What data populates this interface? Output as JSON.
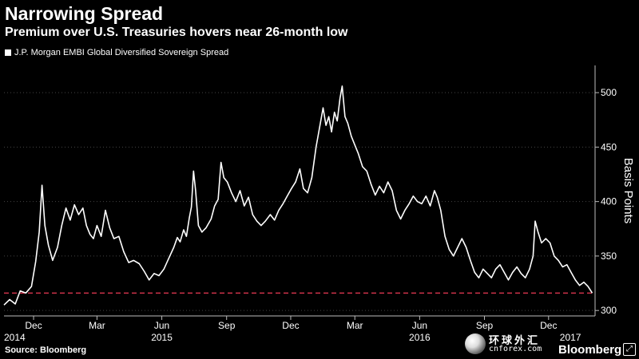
{
  "header": {
    "title": "Narrowing Spread",
    "subtitle": "Premium over U.S. Treasuries hovers near 26-month low"
  },
  "footer": {
    "source": "Source: Bloomberg",
    "watermark_cn": "环球外汇",
    "watermark_url": "cnforex.com",
    "brand": "Bloomberg"
  },
  "colors": {
    "line": "#ffffff",
    "reference": "#d0334a",
    "grid": "#444444",
    "background": "#000000"
  },
  "icons": {
    "corner": "expand-icon",
    "logo": "globe-logo-icon"
  },
  "chart_data": {
    "type": "line",
    "title": "Narrowing Spread",
    "subtitle": "Premium over U.S. Treasuries hovers near 26-month low",
    "ylabel": "Basis Points",
    "xlabel": "",
    "ylim": [
      295,
      525
    ],
    "yticks": [
      300,
      350,
      400,
      450,
      500
    ],
    "y_axis_position": "right",
    "grid": "horizontal dotted",
    "legend": "top-left",
    "x_month_ticks": [
      {
        "label": "Dec",
        "date": "2014-12-01"
      },
      {
        "label": "Mar",
        "date": "2015-03-01"
      },
      {
        "label": "Jun",
        "date": "2015-06-01"
      },
      {
        "label": "Sep",
        "date": "2015-09-01"
      },
      {
        "label": "Dec",
        "date": "2015-12-01"
      },
      {
        "label": "Mar",
        "date": "2016-03-01"
      },
      {
        "label": "Jun",
        "date": "2016-06-01"
      },
      {
        "label": "Sep",
        "date": "2016-09-01"
      },
      {
        "label": "Dec",
        "date": "2016-12-01"
      }
    ],
    "x_year_labels": [
      {
        "label": "2014",
        "date": "2014-11-01"
      },
      {
        "label": "2015",
        "date": "2015-06-01"
      },
      {
        "label": "2016",
        "date": "2016-06-01"
      },
      {
        "label": "2017",
        "date": "2017-01-01"
      }
    ],
    "xlim": [
      "2014-10-20",
      "2017-02-05"
    ],
    "reference_line": {
      "value": 316,
      "style": "dashed"
    },
    "series": [
      {
        "name": "J.P. Morgan EMBI Global Diversified Sovereign Spread",
        "points": [
          [
            "2014-10-20",
            305
          ],
          [
            "2014-10-28",
            310
          ],
          [
            "2014-11-05",
            306
          ],
          [
            "2014-11-12",
            318
          ],
          [
            "2014-11-20",
            316
          ],
          [
            "2014-11-28",
            322
          ],
          [
            "2014-12-04",
            345
          ],
          [
            "2014-12-09",
            372
          ],
          [
            "2014-12-13",
            415
          ],
          [
            "2014-12-17",
            378
          ],
          [
            "2014-12-22",
            360
          ],
          [
            "2014-12-28",
            346
          ],
          [
            "2015-01-04",
            358
          ],
          [
            "2015-01-10",
            378
          ],
          [
            "2015-01-16",
            394
          ],
          [
            "2015-01-22",
            383
          ],
          [
            "2015-01-28",
            397
          ],
          [
            "2015-02-03",
            388
          ],
          [
            "2015-02-09",
            394
          ],
          [
            "2015-02-14",
            378
          ],
          [
            "2015-02-19",
            370
          ],
          [
            "2015-02-24",
            366
          ],
          [
            "2015-03-01",
            378
          ],
          [
            "2015-03-07",
            368
          ],
          [
            "2015-03-13",
            392
          ],
          [
            "2015-03-19",
            376
          ],
          [
            "2015-03-25",
            366
          ],
          [
            "2015-04-01",
            368
          ],
          [
            "2015-04-08",
            354
          ],
          [
            "2015-04-15",
            344
          ],
          [
            "2015-04-22",
            346
          ],
          [
            "2015-04-30",
            343
          ],
          [
            "2015-05-07",
            336
          ],
          [
            "2015-05-14",
            328
          ],
          [
            "2015-05-21",
            334
          ],
          [
            "2015-05-28",
            332
          ],
          [
            "2015-06-04",
            338
          ],
          [
            "2015-06-11",
            348
          ],
          [
            "2015-06-18",
            358
          ],
          [
            "2015-06-23",
            367
          ],
          [
            "2015-06-27",
            363
          ],
          [
            "2015-07-02",
            374
          ],
          [
            "2015-07-06",
            368
          ],
          [
            "2015-07-10",
            385
          ],
          [
            "2015-07-13",
            395
          ],
          [
            "2015-07-16",
            428
          ],
          [
            "2015-07-19",
            410
          ],
          [
            "2015-07-23",
            378
          ],
          [
            "2015-07-28",
            372
          ],
          [
            "2015-08-03",
            376
          ],
          [
            "2015-08-10",
            384
          ],
          [
            "2015-08-15",
            396
          ],
          [
            "2015-08-20",
            402
          ],
          [
            "2015-08-24",
            436
          ],
          [
            "2015-08-28",
            422
          ],
          [
            "2015-09-02",
            418
          ],
          [
            "2015-09-08",
            408
          ],
          [
            "2015-09-14",
            400
          ],
          [
            "2015-09-20",
            410
          ],
          [
            "2015-09-26",
            396
          ],
          [
            "2015-10-02",
            404
          ],
          [
            "2015-10-08",
            388
          ],
          [
            "2015-10-14",
            382
          ],
          [
            "2015-10-20",
            378
          ],
          [
            "2015-10-26",
            382
          ],
          [
            "2015-11-02",
            388
          ],
          [
            "2015-11-08",
            383
          ],
          [
            "2015-11-14",
            392
          ],
          [
            "2015-11-20",
            398
          ],
          [
            "2015-11-26",
            405
          ],
          [
            "2015-12-02",
            412
          ],
          [
            "2015-12-08",
            418
          ],
          [
            "2015-12-14",
            430
          ],
          [
            "2015-12-19",
            412
          ],
          [
            "2015-12-25",
            408
          ],
          [
            "2015-12-31",
            422
          ],
          [
            "2016-01-06",
            450
          ],
          [
            "2016-01-11",
            468
          ],
          [
            "2016-01-16",
            486
          ],
          [
            "2016-01-20",
            470
          ],
          [
            "2016-01-24",
            478
          ],
          [
            "2016-01-28",
            464
          ],
          [
            "2016-02-01",
            482
          ],
          [
            "2016-02-05",
            474
          ],
          [
            "2016-02-09",
            495
          ],
          [
            "2016-02-12",
            506
          ],
          [
            "2016-02-16",
            478
          ],
          [
            "2016-02-20",
            472
          ],
          [
            "2016-02-25",
            460
          ],
          [
            "2016-03-01",
            452
          ],
          [
            "2016-03-06",
            444
          ],
          [
            "2016-03-12",
            432
          ],
          [
            "2016-03-18",
            428
          ],
          [
            "2016-03-24",
            416
          ],
          [
            "2016-03-30",
            406
          ],
          [
            "2016-04-05",
            414
          ],
          [
            "2016-04-11",
            408
          ],
          [
            "2016-04-17",
            418
          ],
          [
            "2016-04-23",
            410
          ],
          [
            "2016-04-29",
            392
          ],
          [
            "2016-05-05",
            384
          ],
          [
            "2016-05-11",
            392
          ],
          [
            "2016-05-17",
            398
          ],
          [
            "2016-05-23",
            405
          ],
          [
            "2016-05-29",
            400
          ],
          [
            "2016-06-04",
            398
          ],
          [
            "2016-06-10",
            405
          ],
          [
            "2016-06-16",
            396
          ],
          [
            "2016-06-22",
            410
          ],
          [
            "2016-06-26",
            404
          ],
          [
            "2016-07-01",
            392
          ],
          [
            "2016-07-07",
            368
          ],
          [
            "2016-07-13",
            356
          ],
          [
            "2016-07-19",
            350
          ],
          [
            "2016-07-25",
            358
          ],
          [
            "2016-07-31",
            366
          ],
          [
            "2016-08-06",
            358
          ],
          [
            "2016-08-12",
            346
          ],
          [
            "2016-08-18",
            335
          ],
          [
            "2016-08-24",
            330
          ],
          [
            "2016-08-30",
            338
          ],
          [
            "2016-09-05",
            334
          ],
          [
            "2016-09-11",
            330
          ],
          [
            "2016-09-17",
            338
          ],
          [
            "2016-09-23",
            342
          ],
          [
            "2016-09-29",
            335
          ],
          [
            "2016-10-05",
            328
          ],
          [
            "2016-10-11",
            335
          ],
          [
            "2016-10-17",
            340
          ],
          [
            "2016-10-23",
            334
          ],
          [
            "2016-10-29",
            330
          ],
          [
            "2016-11-04",
            338
          ],
          [
            "2016-11-09",
            350
          ],
          [
            "2016-11-12",
            382
          ],
          [
            "2016-11-16",
            372
          ],
          [
            "2016-11-21",
            362
          ],
          [
            "2016-11-27",
            366
          ],
          [
            "2016-12-03",
            362
          ],
          [
            "2016-12-09",
            350
          ],
          [
            "2016-12-15",
            346
          ],
          [
            "2016-12-21",
            340
          ],
          [
            "2016-12-27",
            342
          ],
          [
            "2017-01-02",
            335
          ],
          [
            "2017-01-08",
            328
          ],
          [
            "2017-01-14",
            323
          ],
          [
            "2017-01-20",
            326
          ],
          [
            "2017-01-26",
            322
          ],
          [
            "2017-02-01",
            316
          ]
        ]
      }
    ]
  }
}
